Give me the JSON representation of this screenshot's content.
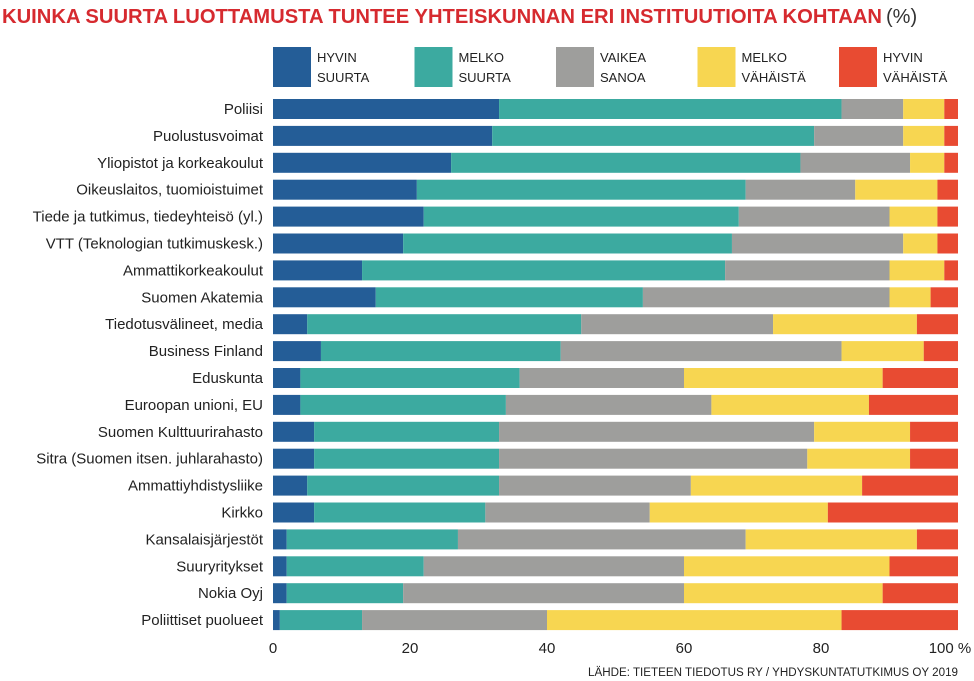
{
  "chart_data": {
    "type": "bar",
    "orientation": "horizontal",
    "stacked": true,
    "title": "KUINKA SUURTA LUOTTAMUSTA TUNTEE YHTEISKUNNAN ERI INSTITUUTIOITA KOHTAAN",
    "title_unit": "(%)",
    "source": "LÄHDE: TIETEEN TIEDOTUS RY / YHDYSKUNTATUTKIMUS OY 2019",
    "xlim": [
      0,
      100
    ],
    "xticks": [
      "0",
      "20",
      "40",
      "60",
      "80",
      "100 %"
    ],
    "grid": false,
    "legend_position": "top",
    "categories": [
      "Poliisi",
      "Puolustusvoimat",
      "Yliopistot ja korkeakoulut",
      "Oikeuslaitos, tuomioistuimet",
      "Tiede ja tutkimus, tiedeyhteisö (yl.)",
      "VTT (Teknologian tutkimuskesk.)",
      "Ammattikorkeakoulut",
      "Suomen Akatemia",
      "Tiedotusvälineet, media",
      "Business Finland",
      "Eduskunta",
      "Euroopan unioni, EU",
      "Suomen Kulttuurirahasto",
      "Sitra (Suomen itsen. juhlarahasto)",
      "Ammattiyhdistysliike",
      "Kirkko",
      "Kansalaisjärjestöt",
      "Suuryritykset",
      "Nokia Oyj",
      "Poliittiset puolueet"
    ],
    "series": [
      {
        "name": "HYVIN SUURTA",
        "name_lines": [
          "HYVIN",
          "SUURTA"
        ],
        "color": "#245d97",
        "values": [
          33,
          32,
          26,
          21,
          22,
          19,
          13,
          15,
          5,
          7,
          4,
          4,
          6,
          6,
          5,
          6,
          2,
          2,
          2,
          1
        ]
      },
      {
        "name": "MELKO SUURTA",
        "name_lines": [
          "MELKO",
          "SUURTA"
        ],
        "color": "#3caaa0",
        "values": [
          50,
          47,
          51,
          48,
          46,
          48,
          53,
          39,
          40,
          35,
          32,
          30,
          27,
          27,
          28,
          25,
          25,
          20,
          17,
          12
        ]
      },
      {
        "name": "VAIKEA SANOA",
        "name_lines": [
          "VAIKEA",
          "SANOA"
        ],
        "color": "#9e9e9c",
        "values": [
          9,
          13,
          16,
          16,
          22,
          25,
          24,
          36,
          28,
          41,
          24,
          30,
          46,
          45,
          28,
          24,
          42,
          38,
          41,
          27
        ]
      },
      {
        "name": "MELKO VÄHÄISTÄ",
        "name_lines": [
          "MELKO",
          "VÄHÄISTÄ"
        ],
        "color": "#f7d651",
        "values": [
          6,
          6,
          5,
          12,
          7,
          5,
          8,
          6,
          21,
          12,
          29,
          23,
          14,
          15,
          25,
          26,
          25,
          30,
          29,
          43
        ]
      },
      {
        "name": "HYVIN VÄHÄISTÄ",
        "name_lines": [
          "HYVIN",
          "VÄHÄISTÄ"
        ],
        "color": "#e84b32",
        "values": [
          2,
          2,
          2,
          3,
          3,
          3,
          2,
          4,
          6,
          5,
          11,
          13,
          7,
          7,
          14,
          19,
          6,
          10,
          11,
          17
        ]
      }
    ]
  }
}
